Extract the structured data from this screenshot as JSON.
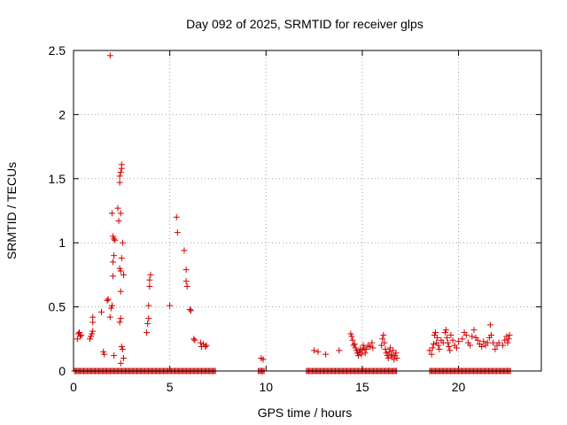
{
  "chart_data": {
    "type": "scatter",
    "title": "Day 092 of 2025, SRMTID for receiver glps",
    "xlabel": "GPS time / hours",
    "ylabel": "SRMTID / TECUs",
    "xlim": [
      0,
      24.3
    ],
    "ylim": [
      0,
      2.5
    ],
    "xticks": [
      0,
      5,
      10,
      15,
      20
    ],
    "xtick_labels": [
      "0",
      "5",
      "10",
      "15",
      "20"
    ],
    "yticks": [
      0,
      0.5,
      1,
      1.5,
      2,
      2.5
    ],
    "ytick_labels": [
      "0",
      "0.5",
      "1",
      "1.5",
      "2",
      "2.5"
    ],
    "grid": true,
    "series": [
      {
        "name": "SRMTID",
        "color": "#d00000",
        "marker": "plus",
        "baseline_ranges": [
          [
            0.05,
            7.4
          ],
          [
            9.6,
            9.9
          ],
          [
            12.1,
            16.8
          ],
          [
            18.5,
            22.7
          ]
        ],
        "points": [
          [
            0.2,
            0.25
          ],
          [
            0.25,
            0.29
          ],
          [
            0.3,
            0.3
          ],
          [
            0.35,
            0.27
          ],
          [
            0.4,
            0.28
          ],
          [
            0.85,
            0.25
          ],
          [
            0.9,
            0.27
          ],
          [
            0.95,
            0.29
          ],
          [
            1.0,
            0.31
          ],
          [
            1.0,
            0.38
          ],
          [
            1.0,
            0.42
          ],
          [
            1.45,
            0.46
          ],
          [
            1.55,
            0.15
          ],
          [
            1.6,
            0.13
          ],
          [
            1.75,
            0.55
          ],
          [
            1.8,
            0.56
          ],
          [
            1.9,
            0.42
          ],
          [
            1.95,
            0.49
          ],
          [
            2.0,
            0.51
          ],
          [
            2.05,
            0.74
          ],
          [
            2.05,
            0.85
          ],
          [
            2.1,
            0.9
          ],
          [
            2.0,
            1.23
          ],
          [
            2.05,
            1.05
          ],
          [
            2.1,
            1.03
          ],
          [
            2.15,
            1.02
          ],
          [
            2.1,
            0.12
          ],
          [
            1.9,
            2.46
          ],
          [
            2.3,
            1.27
          ],
          [
            2.35,
            1.17
          ],
          [
            2.4,
            1.47
          ],
          [
            2.4,
            1.52
          ],
          [
            2.45,
            1.55
          ],
          [
            2.5,
            1.58
          ],
          [
            2.5,
            1.61
          ],
          [
            2.45,
            1.23
          ],
          [
            2.4,
            0.8
          ],
          [
            2.45,
            0.78
          ],
          [
            2.5,
            0.88
          ],
          [
            2.55,
            1.0
          ],
          [
            2.45,
            0.62
          ],
          [
            2.4,
            0.38
          ],
          [
            2.45,
            0.41
          ],
          [
            2.5,
            0.19
          ],
          [
            2.55,
            0.17
          ],
          [
            2.6,
            0.75
          ],
          [
            2.45,
            0.06
          ],
          [
            2.6,
            0.1
          ],
          [
            3.8,
            0.3
          ],
          [
            3.85,
            0.37
          ],
          [
            3.9,
            0.41
          ],
          [
            3.9,
            0.51
          ],
          [
            3.95,
            0.66
          ],
          [
            3.95,
            0.71
          ],
          [
            4.0,
            0.75
          ],
          [
            5.0,
            0.51
          ],
          [
            5.35,
            1.2
          ],
          [
            5.4,
            1.08
          ],
          [
            5.75,
            0.94
          ],
          [
            5.85,
            0.79
          ],
          [
            5.85,
            0.7
          ],
          [
            5.9,
            0.66
          ],
          [
            6.05,
            0.48
          ],
          [
            6.1,
            0.47
          ],
          [
            6.25,
            0.25
          ],
          [
            6.3,
            0.24
          ],
          [
            6.6,
            0.22
          ],
          [
            6.65,
            0.19
          ],
          [
            6.75,
            0.21
          ],
          [
            6.85,
            0.19
          ],
          [
            6.9,
            0.2
          ],
          [
            9.75,
            0.1
          ],
          [
            9.85,
            0.09
          ],
          [
            12.5,
            0.16
          ],
          [
            12.7,
            0.15
          ],
          [
            13.1,
            0.13
          ],
          [
            13.8,
            0.16
          ],
          [
            14.4,
            0.29
          ],
          [
            14.45,
            0.27
          ],
          [
            14.5,
            0.24
          ],
          [
            14.55,
            0.2
          ],
          [
            14.6,
            0.21
          ],
          [
            14.65,
            0.18
          ],
          [
            14.7,
            0.16
          ],
          [
            14.75,
            0.14
          ],
          [
            14.8,
            0.12
          ],
          [
            14.85,
            0.15
          ],
          [
            14.9,
            0.17
          ],
          [
            14.95,
            0.13
          ],
          [
            15.0,
            0.16
          ],
          [
            15.05,
            0.2
          ],
          [
            15.1,
            0.18
          ],
          [
            15.15,
            0.14
          ],
          [
            15.2,
            0.17
          ],
          [
            15.3,
            0.2
          ],
          [
            15.4,
            0.19
          ],
          [
            15.5,
            0.22
          ],
          [
            15.55,
            0.18
          ],
          [
            16.0,
            0.2
          ],
          [
            16.05,
            0.25
          ],
          [
            16.1,
            0.28
          ],
          [
            16.15,
            0.22
          ],
          [
            16.2,
            0.17
          ],
          [
            16.25,
            0.14
          ],
          [
            16.3,
            0.12
          ],
          [
            16.35,
            0.1
          ],
          [
            16.4,
            0.15
          ],
          [
            16.45,
            0.18
          ],
          [
            16.5,
            0.13
          ],
          [
            16.55,
            0.11
          ],
          [
            16.6,
            0.16
          ],
          [
            16.65,
            0.09
          ],
          [
            16.7,
            0.12
          ],
          [
            16.75,
            0.14
          ],
          [
            16.8,
            0.1
          ],
          [
            18.5,
            0.16
          ],
          [
            18.6,
            0.13
          ],
          [
            18.65,
            0.18
          ],
          [
            18.7,
            0.21
          ],
          [
            18.75,
            0.28
          ],
          [
            18.8,
            0.3
          ],
          [
            18.85,
            0.22
          ],
          [
            18.9,
            0.26
          ],
          [
            18.95,
            0.2
          ],
          [
            19.0,
            0.17
          ],
          [
            19.1,
            0.24
          ],
          [
            19.2,
            0.22
          ],
          [
            19.3,
            0.3
          ],
          [
            19.35,
            0.32
          ],
          [
            19.4,
            0.26
          ],
          [
            19.45,
            0.22
          ],
          [
            19.5,
            0.19
          ],
          [
            19.55,
            0.16
          ],
          [
            19.6,
            0.28
          ],
          [
            19.7,
            0.24
          ],
          [
            19.8,
            0.2
          ],
          [
            19.9,
            0.18
          ],
          [
            20.0,
            0.23
          ],
          [
            20.2,
            0.25
          ],
          [
            20.3,
            0.3
          ],
          [
            20.4,
            0.28
          ],
          [
            20.5,
            0.22
          ],
          [
            20.6,
            0.2
          ],
          [
            20.7,
            0.27
          ],
          [
            20.8,
            0.32
          ],
          [
            20.9,
            0.26
          ],
          [
            21.0,
            0.24
          ],
          [
            21.1,
            0.21
          ],
          [
            21.2,
            0.19
          ],
          [
            21.3,
            0.23
          ],
          [
            21.4,
            0.2
          ],
          [
            21.5,
            0.22
          ],
          [
            21.6,
            0.26
          ],
          [
            21.65,
            0.36
          ],
          [
            21.7,
            0.28
          ],
          [
            21.8,
            0.22
          ],
          [
            21.9,
            0.17
          ],
          [
            22.0,
            0.2
          ],
          [
            22.1,
            0.22
          ],
          [
            22.3,
            0.2
          ],
          [
            22.4,
            0.24
          ],
          [
            22.5,
            0.27
          ],
          [
            22.55,
            0.22
          ],
          [
            22.6,
            0.25
          ],
          [
            22.65,
            0.28
          ]
        ]
      }
    ]
  }
}
